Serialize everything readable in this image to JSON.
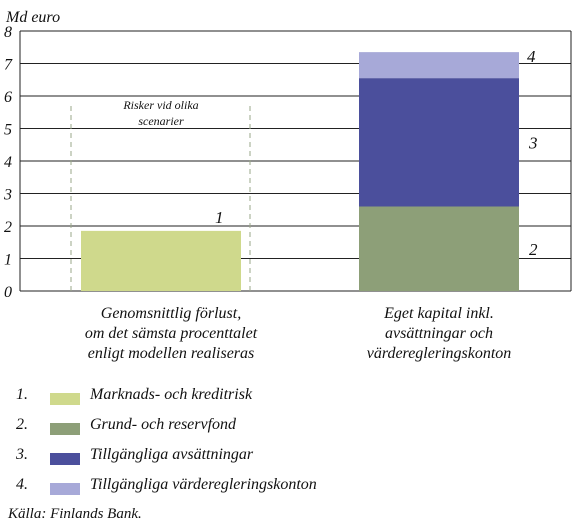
{
  "chart_data": {
    "type": "bar",
    "stacked": true,
    "ylabel": "Md euro",
    "ylim": [
      0,
      8
    ],
    "yticks": [
      0,
      1,
      2,
      3,
      4,
      5,
      6,
      7,
      8
    ],
    "grid": true,
    "categories": [
      [
        "Genomsnittlig förlust,",
        "om det sämsta procenttalet",
        "enligt modellen realiseras"
      ],
      [
        "Eget kapital inkl.",
        "avsättningar och",
        "värderegleringskonton"
      ]
    ],
    "series": [
      {
        "name": "Marknads- och kreditrisk",
        "number": "1",
        "color": "#cfd98c",
        "values": [
          1.85,
          0
        ]
      },
      {
        "name": "Grund- och reservfond",
        "number": "2",
        "color": "#8d9f78",
        "values": [
          0,
          2.6
        ]
      },
      {
        "name": "Tillgängliga avsättningar",
        "number": "3",
        "color": "#4b4f9c",
        "values": [
          0,
          3.95
        ]
      },
      {
        "name": "Tillgängliga värderegleringskonton",
        "number": "4",
        "color": "#a7a9d8",
        "values": [
          0,
          0.8
        ]
      }
    ],
    "annotation": [
      "Risker vid olika",
      "scenarier"
    ]
  },
  "legend": {
    "items": [
      {
        "number": "1.",
        "label": "Marknads- och kreditrisk",
        "color": "#cfd98c"
      },
      {
        "number": "2.",
        "label": "Grund- och reservfond",
        "color": "#8d9f78"
      },
      {
        "number": "3.",
        "label": "Tillgängliga avsättningar",
        "color": "#4b4f9c"
      },
      {
        "number": "4.",
        "label": "Tillgängliga värderegleringskonton",
        "color": "#a7a9d8"
      }
    ]
  },
  "source": "Källa: Finlands Bank."
}
